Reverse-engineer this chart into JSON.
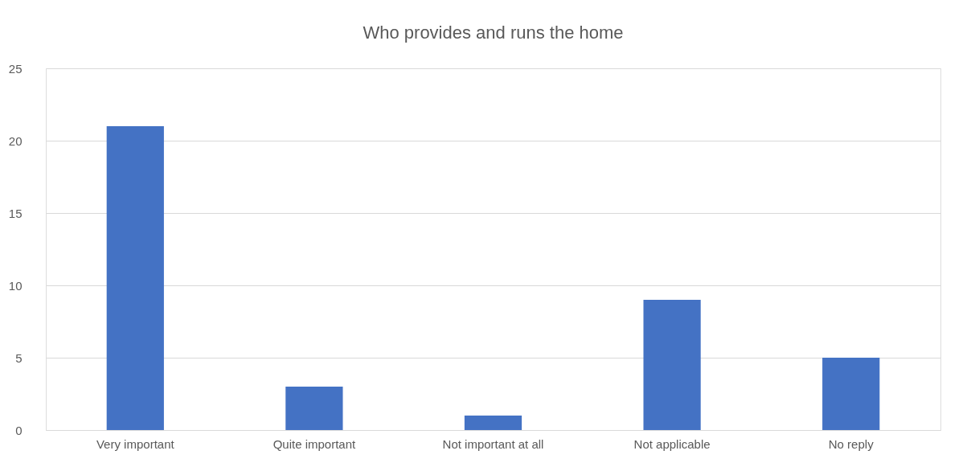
{
  "chart_data": {
    "type": "bar",
    "title": "Who provides and runs the home",
    "categories": [
      "Very important",
      "Quite important",
      "Not important at all",
      "Not applicable",
      "No reply"
    ],
    "values": [
      21,
      3,
      1,
      9,
      5
    ],
    "color": "#4472c4",
    "ylim": [
      0,
      25
    ],
    "yticks": [
      0,
      5,
      10,
      15,
      20,
      25
    ],
    "grid": "y"
  }
}
